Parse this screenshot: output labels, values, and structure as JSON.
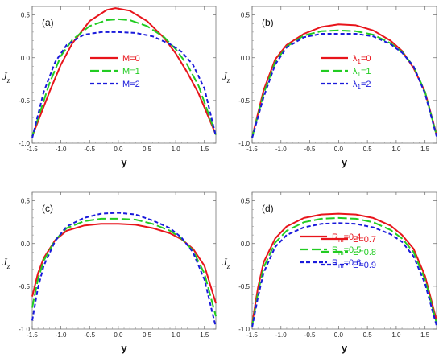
{
  "chart_data": [
    {
      "type": "line",
      "panel": "(a)",
      "xlabel": "y",
      "ylabel": {
        "main": "J",
        "sub": "z"
      },
      "xlim": [
        -1.5,
        1.7
      ],
      "ylim": [
        -1.0,
        0.6
      ],
      "xticks": [
        -1.5,
        -1.0,
        -0.5,
        0.0,
        0.5,
        1.0,
        1.5
      ],
      "yticks": [
        -1.0,
        -0.5,
        0.0,
        0.5
      ],
      "legend_position": "center",
      "series": [
        {
          "name": {
            "main": "M=0",
            "sub": ""
          },
          "color": "#e8141b",
          "style": "solid",
          "x": [
            -1.5,
            -1.2,
            -1.0,
            -0.8,
            -0.5,
            -0.2,
            -0.05,
            0.2,
            0.5,
            0.8,
            1.0,
            1.2,
            1.4,
            1.7
          ],
          "y": [
            -0.92,
            -0.4,
            -0.08,
            0.17,
            0.43,
            0.56,
            0.58,
            0.55,
            0.43,
            0.23,
            0.05,
            -0.17,
            -0.42,
            -0.9
          ]
        },
        {
          "name": {
            "main": "M=1",
            "sub": ""
          },
          "color": "#22cc22",
          "style": "dash",
          "x": [
            -1.5,
            -1.2,
            -1.0,
            -0.8,
            -0.5,
            -0.2,
            0.0,
            0.2,
            0.5,
            0.8,
            1.0,
            1.2,
            1.4,
            1.7
          ],
          "y": [
            -0.92,
            -0.3,
            0.02,
            0.21,
            0.37,
            0.44,
            0.45,
            0.44,
            0.37,
            0.24,
            0.1,
            -0.08,
            -0.33,
            -0.9
          ]
        },
        {
          "name": {
            "main": "M=2",
            "sub": ""
          },
          "color": "#1a1adb",
          "style": "short-dash",
          "x": [
            -1.5,
            -1.3,
            -1.1,
            -0.9,
            -0.6,
            -0.3,
            0.0,
            0.3,
            0.6,
            0.9,
            1.1,
            1.3,
            1.5,
            1.7
          ],
          "y": [
            -0.94,
            -0.4,
            -0.05,
            0.15,
            0.27,
            0.3,
            0.3,
            0.29,
            0.25,
            0.16,
            0.07,
            -0.08,
            -0.36,
            -0.92
          ]
        }
      ]
    },
    {
      "type": "line",
      "panel": "(b)",
      "xlabel": "y",
      "ylabel": {
        "main": "J",
        "sub": "z"
      },
      "xlim": [
        -1.5,
        1.7
      ],
      "ylim": [
        -1.0,
        0.6
      ],
      "xticks": [
        -1.5,
        -1.0,
        -0.5,
        0.0,
        0.5,
        1.0,
        1.5
      ],
      "yticks": [
        -1.0,
        -0.5,
        0.0,
        0.5
      ],
      "legend_position": "right",
      "series": [
        {
          "name": {
            "main": "λ",
            "sub": "1",
            "suffix": "=0"
          },
          "color": "#e8141b",
          "style": "solid",
          "x": [
            -1.5,
            -1.3,
            -1.1,
            -0.9,
            -0.6,
            -0.3,
            0.0,
            0.3,
            0.6,
            0.9,
            1.1,
            1.3,
            1.5,
            1.7
          ],
          "y": [
            -0.93,
            -0.38,
            -0.02,
            0.15,
            0.28,
            0.36,
            0.39,
            0.38,
            0.32,
            0.2,
            0.08,
            -0.12,
            -0.4,
            -0.9
          ]
        },
        {
          "name": {
            "main": "λ",
            "sub": "1",
            "suffix": "=1"
          },
          "color": "#22cc22",
          "style": "dash",
          "x": [
            -1.5,
            -1.3,
            -1.1,
            -0.9,
            -0.6,
            -0.3,
            0.0,
            0.3,
            0.6,
            0.9,
            1.1,
            1.3,
            1.5,
            1.7
          ],
          "y": [
            -0.93,
            -0.42,
            -0.05,
            0.13,
            0.26,
            0.31,
            0.32,
            0.31,
            0.27,
            0.17,
            0.07,
            -0.1,
            -0.4,
            -0.91
          ]
        },
        {
          "name": {
            "main": "λ",
            "sub": "1",
            "suffix": "=2"
          },
          "color": "#1a1adb",
          "style": "short-dash",
          "x": [
            -1.5,
            -1.3,
            -1.1,
            -0.9,
            -0.6,
            -0.3,
            0.0,
            0.3,
            0.6,
            0.9,
            1.1,
            1.3,
            1.5,
            1.7
          ],
          "y": [
            -0.94,
            -0.46,
            -0.08,
            0.12,
            0.24,
            0.28,
            0.28,
            0.28,
            0.25,
            0.16,
            0.06,
            -0.1,
            -0.42,
            -0.92
          ]
        }
      ]
    },
    {
      "type": "line",
      "panel": "(c)",
      "xlabel": "y",
      "ylabel": {
        "main": "J",
        "sub": "z"
      },
      "xlim": [
        -1.5,
        1.7
      ],
      "ylim": [
        -1.0,
        0.6
      ],
      "xticks": [
        -1.5,
        -1.0,
        -0.5,
        0.0,
        0.5,
        1.0,
        1.5
      ],
      "yticks": [
        -1.0,
        -0.5,
        0.0,
        0.5
      ],
      "legend_position": "right",
      "series": [
        {
          "name": {
            "main": "R",
            "sub": "m",
            "suffix": "=0.4"
          },
          "color": "#e8141b",
          "style": "solid",
          "x": [
            -1.5,
            -1.4,
            -1.3,
            -1.1,
            -0.9,
            -0.6,
            -0.3,
            0.0,
            0.3,
            0.6,
            0.9,
            1.1,
            1.3,
            1.5,
            1.7
          ],
          "y": [
            -0.62,
            -0.35,
            -0.17,
            0.04,
            0.15,
            0.21,
            0.23,
            0.23,
            0.22,
            0.18,
            0.12,
            0.05,
            -0.06,
            -0.26,
            -0.7
          ]
        },
        {
          "name": {
            "main": "R",
            "sub": "m",
            "suffix": "=0.5"
          },
          "color": "#22cc22",
          "style": "dash",
          "x": [
            -1.5,
            -1.4,
            -1.3,
            -1.1,
            -0.9,
            -0.6,
            -0.3,
            0.0,
            0.3,
            0.6,
            0.9,
            1.1,
            1.3,
            1.5,
            1.7
          ],
          "y": [
            -0.75,
            -0.42,
            -0.2,
            0.04,
            0.18,
            0.26,
            0.29,
            0.29,
            0.28,
            0.23,
            0.15,
            0.06,
            -0.08,
            -0.35,
            -0.85
          ]
        },
        {
          "name": {
            "main": "R",
            "sub": "m",
            "suffix": "=0.6"
          },
          "color": "#1a1adb",
          "style": "short-dash",
          "x": [
            -1.5,
            -1.4,
            -1.3,
            -1.1,
            -0.9,
            -0.6,
            -0.3,
            0.0,
            0.3,
            0.6,
            0.9,
            1.1,
            1.3,
            1.5,
            1.7
          ],
          "y": [
            -0.9,
            -0.52,
            -0.26,
            0.03,
            0.2,
            0.3,
            0.35,
            0.36,
            0.34,
            0.27,
            0.18,
            0.07,
            -0.1,
            -0.42,
            -0.98
          ]
        }
      ]
    },
    {
      "type": "line",
      "panel": "(d)",
      "xlabel": "y",
      "ylabel": {
        "main": "J",
        "sub": "z"
      },
      "xlim": [
        -1.5,
        1.7
      ],
      "ylim": [
        -1.0,
        0.6
      ],
      "xticks": [
        -1.5,
        -1.0,
        -0.5,
        0.0,
        0.5,
        1.0,
        1.5
      ],
      "yticks": [
        -1.0,
        -0.5,
        0.0,
        0.5
      ],
      "legend_position": "center",
      "series": [
        {
          "name": {
            "main": "E=0.7",
            "sub": ""
          },
          "color": "#e8141b",
          "style": "solid",
          "x": [
            -1.5,
            -1.4,
            -1.3,
            -1.1,
            -0.9,
            -0.6,
            -0.3,
            0.0,
            0.3,
            0.6,
            0.9,
            1.1,
            1.3,
            1.5,
            1.7
          ],
          "y": [
            -0.94,
            -0.52,
            -0.22,
            0.06,
            0.2,
            0.3,
            0.34,
            0.35,
            0.34,
            0.3,
            0.21,
            0.1,
            -0.06,
            -0.38,
            -0.9
          ]
        },
        {
          "name": {
            "main": "E=0.8",
            "sub": ""
          },
          "color": "#22cc22",
          "style": "dash",
          "x": [
            -1.5,
            -1.4,
            -1.3,
            -1.1,
            -0.9,
            -0.6,
            -0.3,
            0.0,
            0.3,
            0.6,
            0.9,
            1.1,
            1.3,
            1.5,
            1.7
          ],
          "y": [
            -0.96,
            -0.58,
            -0.28,
            0.01,
            0.15,
            0.25,
            0.29,
            0.3,
            0.29,
            0.25,
            0.16,
            0.06,
            -0.1,
            -0.42,
            -0.93
          ]
        },
        {
          "name": {
            "main": "E=0.9",
            "sub": ""
          },
          "color": "#1a1adb",
          "style": "short-dash",
          "x": [
            -1.5,
            -1.4,
            -1.3,
            -1.1,
            -0.9,
            -0.6,
            -0.3,
            0.0,
            0.3,
            0.6,
            0.9,
            1.1,
            1.3,
            1.5,
            1.7
          ],
          "y": [
            -0.98,
            -0.63,
            -0.34,
            -0.04,
            0.1,
            0.19,
            0.23,
            0.24,
            0.23,
            0.19,
            0.11,
            0.02,
            -0.15,
            -0.47,
            -0.96
          ]
        }
      ]
    }
  ]
}
